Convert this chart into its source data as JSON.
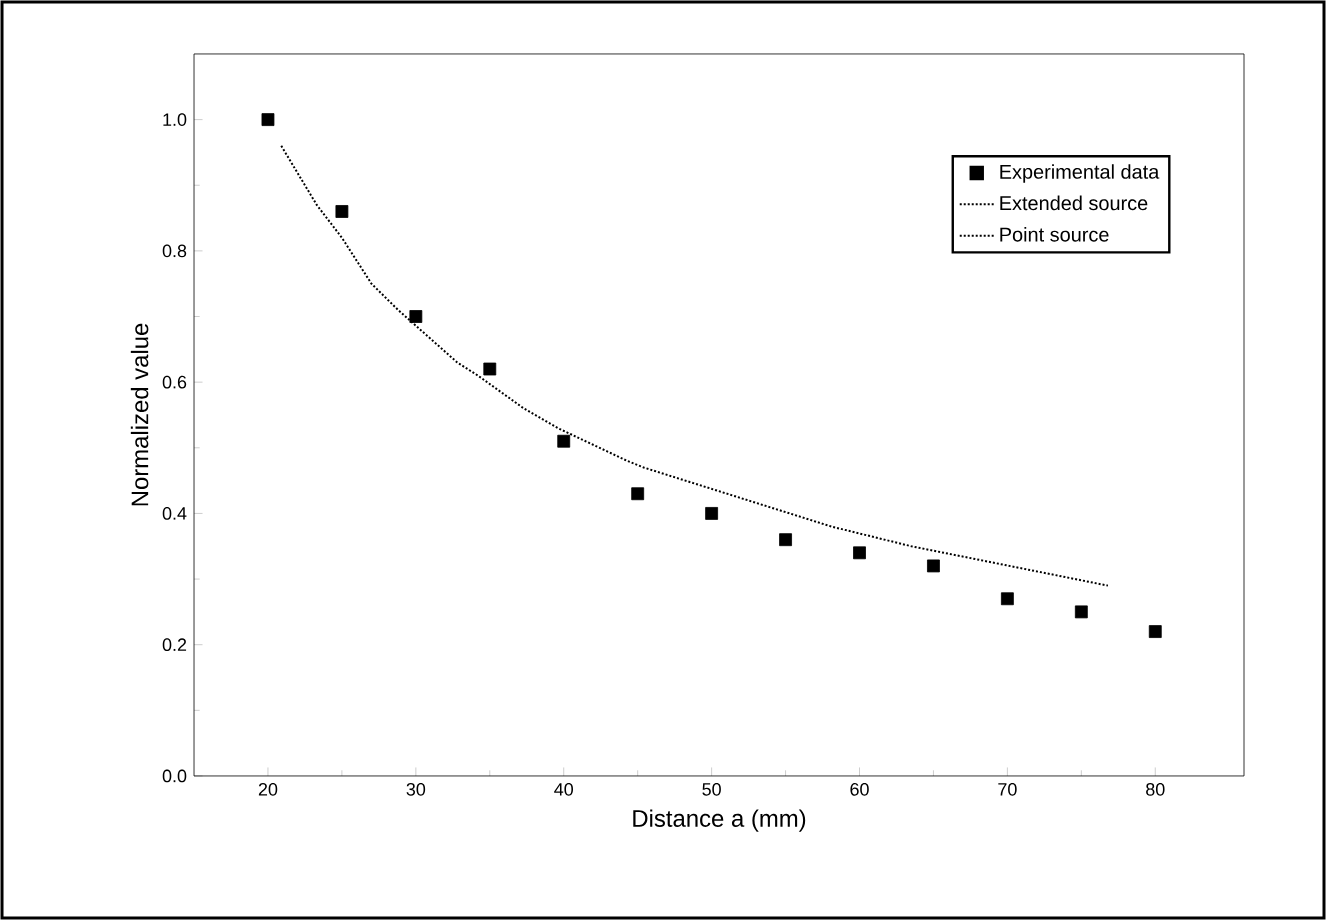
{
  "chart_data": {
    "type": "scatter",
    "xlabel": "Distance a (mm)",
    "ylabel": "Normalized value",
    "xlim": [
      15,
      86
    ],
    "ylim": [
      0,
      1.1
    ],
    "xticks": [
      20,
      30,
      40,
      50,
      60,
      70,
      80
    ],
    "yticks": [
      {
        "value": 0,
        "label": "0.0"
      },
      0.2,
      0.4,
      0.6,
      0.8,
      {
        "value": 1,
        "label": "1.0"
      }
    ],
    "legend": "top right",
    "grid": false,
    "series": [
      {
        "name": "Experimental data",
        "marker": "square",
        "color": "#000000",
        "x": [
          20,
          25,
          30,
          35,
          40,
          45,
          50,
          55,
          60,
          65,
          70,
          75,
          80
        ],
        "values": [
          1.0,
          0.86,
          0.7,
          0.62,
          0.51,
          0.43,
          0.4,
          0.36,
          0.34,
          0.32,
          0.27,
          0.25,
          0.22
        ]
      },
      {
        "name": "Extended source",
        "type": "line",
        "marker": "none",
        "line_style": "dotted",
        "color": "#000000",
        "x": [
          20.9,
          23.3,
          25,
          27,
          28.8,
          30.8,
          32.8,
          34.2,
          37.3,
          39.6,
          44.3,
          45.4,
          58.1,
          63.5,
          76.8
        ],
        "values": [
          0.96,
          0.87,
          0.82,
          0.75,
          0.71,
          0.67,
          0.63,
          0.61,
          0.56,
          0.53,
          0.48,
          0.47,
          0.38,
          0.35,
          0.29
        ]
      },
      {
        "name": "Point source",
        "type": "line",
        "marker": "none",
        "line_style": "dotted",
        "color": "#000000"
      }
    ]
  }
}
